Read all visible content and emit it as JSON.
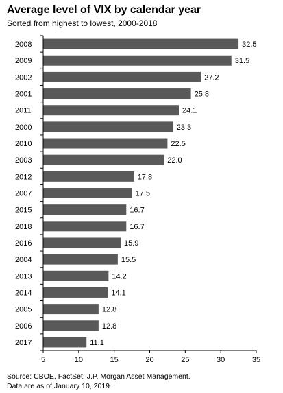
{
  "chart_data": {
    "type": "bar",
    "orientation": "horizontal",
    "title": "Average level of VIX by calendar year",
    "subtitle": "Sorted from highest to lowest, 2000-2018",
    "categories": [
      "2008",
      "2009",
      "2002",
      "2001",
      "2011",
      "2000",
      "2010",
      "2003",
      "2012",
      "2007",
      "2015",
      "2018",
      "2016",
      "2004",
      "2013",
      "2014",
      "2005",
      "2006",
      "2017"
    ],
    "values": [
      32.5,
      31.5,
      27.2,
      25.8,
      24.1,
      23.3,
      22.5,
      22.0,
      17.8,
      17.5,
      16.7,
      16.7,
      15.9,
      15.5,
      14.2,
      14.1,
      12.8,
      12.8,
      11.1
    ],
    "value_labels": [
      "32.5",
      "31.5",
      "27.2",
      "25.8",
      "24.1",
      "23.3",
      "22.5",
      "22.0",
      "17.8",
      "17.5",
      "16.7",
      "16.7",
      "15.9",
      "15.5",
      "14.2",
      "14.1",
      "12.8",
      "12.8",
      "11.1"
    ],
    "xlim": [
      5,
      35
    ],
    "xticks": [
      "5",
      "10",
      "15",
      "20",
      "25",
      "30",
      "35"
    ],
    "grid": false,
    "bar_color": "#595959"
  },
  "footer": {
    "source": "Source: CBOE, FactSet, J.P. Morgan Asset Management.",
    "note": "Data are as of January 10, 2019."
  }
}
